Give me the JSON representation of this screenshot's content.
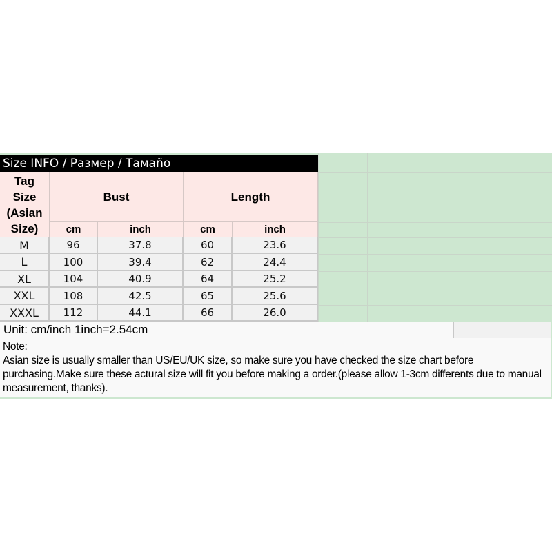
{
  "title": "Size INFO / Размер / Тамаño",
  "headers": {
    "tag_size": "Tag Size (Asian Size)",
    "bust": "Bust",
    "length": "Length",
    "units": [
      "cm",
      "inch",
      "cm",
      "inch"
    ]
  },
  "rows": [
    {
      "size": "M",
      "bust_cm": "96",
      "bust_inch": "37.8",
      "length_cm": "60",
      "length_inch": "23.6"
    },
    {
      "size": "L",
      "bust_cm": "100",
      "bust_inch": "39.4",
      "length_cm": "62",
      "length_inch": "24.4"
    },
    {
      "size": "XL",
      "bust_cm": "104",
      "bust_inch": "40.9",
      "length_cm": "64",
      "length_inch": "25.2"
    },
    {
      "size": "XXL",
      "bust_cm": "108",
      "bust_inch": "42.5",
      "length_cm": "65",
      "length_inch": "25.6"
    },
    {
      "size": "XXXL",
      "bust_cm": "112",
      "bust_inch": "44.1",
      "length_cm": "66",
      "length_inch": "26.0"
    }
  ],
  "unit_note": "Unit: cm/inch 1inch=2.54cm",
  "note": {
    "label": "Note:",
    "text": "Asian size is usually smaller than US/EU/UK size, so make sure you have checked the size chart before purchasing.Make sure these actural size will fit you before making a order.(please allow 1-3cm differents due to manual measurement, thanks)."
  },
  "colors": {
    "header_bg": "#fde8e6",
    "grid_bg": "#cde7d0",
    "title_bg": "#000000",
    "cell_bg": "#f1f1f1"
  }
}
